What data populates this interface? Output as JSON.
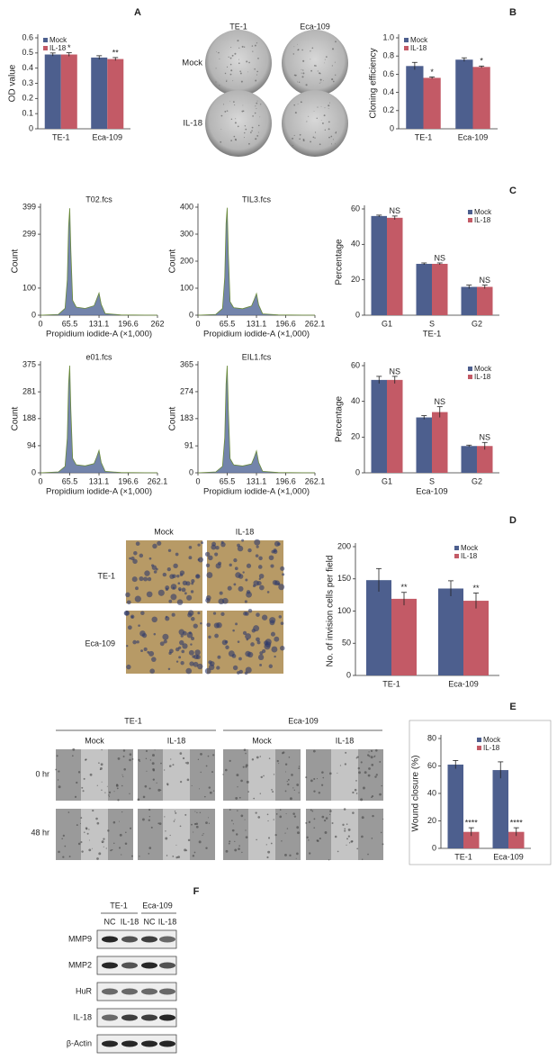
{
  "chart_data": [
    {
      "type": "bar",
      "label": "A",
      "ylabel": "OD value",
      "categories": [
        "TE-1",
        "Eca-109"
      ],
      "series": [
        {
          "name": "Mock",
          "color": "#4d5f8e",
          "values": [
            0.49,
            0.47
          ],
          "errors": [
            0.01,
            0.012
          ]
        },
        {
          "name": "IL-18",
          "color": "#c35a66",
          "values": [
            0.49,
            0.46
          ],
          "errors": [
            0.012,
            0.01
          ],
          "significance": [
            "*",
            "**"
          ]
        }
      ],
      "ylim": [
        0,
        0.6
      ],
      "yticks": [
        0,
        0.1,
        0.2,
        0.3,
        0.4,
        0.5,
        0.6
      ]
    },
    {
      "type": "bar",
      "label": "B",
      "ylabel": "Cloning efficiency",
      "categories": [
        "TE-1",
        "Eca-109"
      ],
      "series": [
        {
          "name": "Mock",
          "color": "#4d5f8e",
          "values": [
            0.69,
            0.76
          ],
          "errors": [
            0.04,
            0.02
          ]
        },
        {
          "name": "IL-18",
          "color": "#c35a66",
          "values": [
            0.56,
            0.68
          ],
          "errors": [
            0.01,
            0.01
          ],
          "significance": [
            "*",
            "*"
          ]
        }
      ],
      "ylim": [
        0,
        1
      ],
      "yticks": [
        0,
        0.2,
        0.4,
        0.6,
        0.8,
        {
          "value": 1,
          "label": "1.0"
        }
      ]
    },
    {
      "type": "area",
      "title": "T02.fcs",
      "xlabel": "Propidium iodide-A (×1,000)",
      "ylabel": "Count",
      "color": "#5b6f9c",
      "x": [
        0,
        40,
        55,
        60,
        63,
        65.5,
        68,
        72,
        80,
        100,
        120,
        126,
        131.1,
        136,
        145,
        180,
        262
      ],
      "values": [
        0,
        3,
        25,
        130,
        330,
        395,
        240,
        55,
        30,
        25,
        35,
        60,
        82,
        40,
        6,
        1,
        0
      ],
      "xlim": [
        0,
        262
      ],
      "xticks": [
        0,
        65.5,
        131.1,
        196.6,
        262
      ],
      "ylim": [
        0,
        399
      ],
      "yticks": [
        0,
        100,
        299,
        399
      ]
    },
    {
      "type": "area",
      "title": "TIL3.fcs",
      "xlabel": "Propidium iodide-A (×1,000)",
      "ylabel": "Count",
      "color": "#5b6f9c",
      "x": [
        0,
        40,
        55,
        60,
        63,
        65.5,
        68,
        72,
        80,
        100,
        120,
        126,
        131.1,
        136,
        145,
        180,
        262.1
      ],
      "values": [
        0,
        3,
        25,
        140,
        340,
        398,
        230,
        50,
        28,
        24,
        34,
        58,
        80,
        38,
        5,
        1,
        0
      ],
      "xlim": [
        0,
        262.1
      ],
      "xticks": [
        0,
        65.5,
        131.1,
        196.6,
        262.1
      ],
      "ylim": [
        0,
        400
      ],
      "yticks": [
        0,
        100,
        200,
        300,
        400
      ]
    },
    {
      "type": "area",
      "title": "e01.fcs",
      "xlabel": "Propidium iodide-A (×1,000)",
      "ylabel": "Count",
      "color": "#5b6f9c",
      "x": [
        0,
        40,
        55,
        60,
        63,
        65.5,
        68,
        72,
        80,
        100,
        120,
        126,
        131.1,
        136,
        145,
        180,
        262.1
      ],
      "values": [
        0,
        3,
        22,
        120,
        310,
        372,
        220,
        50,
        28,
        24,
        32,
        55,
        78,
        36,
        5,
        1,
        0
      ],
      "xlim": [
        0,
        262.1
      ],
      "xticks": [
        0,
        65.5,
        131.1,
        196.6,
        262.1
      ],
      "ylim": [
        0,
        375
      ],
      "yticks": [
        0,
        94,
        188,
        281,
        375
      ]
    },
    {
      "type": "area",
      "title": "EIL1.fcs",
      "xlabel": "Propidium iodide-A (×1,000)",
      "ylabel": "Count",
      "color": "#5b6f9c",
      "x": [
        0,
        40,
        55,
        60,
        63,
        65.5,
        68,
        72,
        80,
        100,
        120,
        126,
        131.1,
        136,
        145,
        180,
        262.1
      ],
      "values": [
        0,
        3,
        22,
        118,
        300,
        362,
        215,
        48,
        27,
        23,
        30,
        52,
        74,
        35,
        5,
        1,
        0
      ],
      "xlim": [
        0,
        262.1
      ],
      "xticks": [
        0,
        65.5,
        131.1,
        196.6,
        262.1
      ],
      "ylim": [
        0,
        365
      ],
      "yticks": [
        0,
        91,
        183,
        274,
        365
      ]
    },
    {
      "type": "bar",
      "label": "C",
      "ylabel": "Percentage",
      "xlabel": "TE-1",
      "categories": [
        "G1",
        "S",
        "G2"
      ],
      "series": [
        {
          "name": "Mock",
          "color": "#4d5f8e",
          "values": [
            56,
            29,
            16
          ],
          "errors": [
            0.5,
            0.5,
            1
          ]
        },
        {
          "name": "IL-18",
          "color": "#c35a66",
          "values": [
            55,
            29,
            16
          ],
          "errors": [
            1,
            0.5,
            1
          ],
          "significance": [
            "NS",
            "NS",
            "NS"
          ]
        }
      ],
      "ylim": [
        0,
        60
      ],
      "yticks": [
        0,
        20,
        40,
        60
      ]
    },
    {
      "type": "bar",
      "ylabel": "Percentage",
      "xlabel": "Eca-109",
      "categories": [
        "G1",
        "S",
        "G2"
      ],
      "series": [
        {
          "name": "Mock",
          "color": "#4d5f8e",
          "values": [
            52,
            31,
            15
          ],
          "errors": [
            2,
            1,
            0.5
          ]
        },
        {
          "name": "IL-18",
          "color": "#c35a66",
          "values": [
            52,
            34,
            15
          ],
          "errors": [
            2,
            3,
            2
          ],
          "significance": [
            "NS",
            "NS",
            "NS"
          ]
        }
      ],
      "ylim": [
        0,
        60
      ],
      "yticks": [
        0,
        20,
        40,
        60
      ]
    },
    {
      "type": "bar",
      "label": "D",
      "ylabel": "No. of invision cells per field",
      "categories": [
        "TE-1",
        "Eca-109"
      ],
      "series": [
        {
          "name": "Mock",
          "color": "#4d5f8e",
          "values": [
            148,
            135
          ],
          "errors": [
            18,
            12
          ]
        },
        {
          "name": "IL-18",
          "color": "#c35a66",
          "values": [
            119,
            116
          ],
          "errors": [
            10,
            12
          ],
          "significance": [
            "**",
            "**"
          ]
        }
      ],
      "ylim": [
        0,
        200
      ],
      "yticks": [
        0,
        50,
        100,
        150,
        200
      ]
    },
    {
      "type": "bar",
      "label": "E",
      "ylabel": "Wound closure (%)",
      "categories": [
        "TE-1",
        "Eca-109"
      ],
      "series": [
        {
          "name": "Mock",
          "color": "#4d5f8e",
          "values": [
            61,
            57
          ],
          "errors": [
            3,
            6
          ]
        },
        {
          "name": "IL-18",
          "color": "#c35a66",
          "values": [
            12,
            12
          ],
          "errors": [
            3,
            3
          ],
          "significance": [
            "****",
            "****"
          ]
        }
      ],
      "ylim": [
        0,
        80
      ],
      "yticks": [
        0,
        20,
        40,
        60,
        80
      ]
    }
  ],
  "figure": {
    "plates": {
      "columns": [
        "TE-1",
        "Eca-109"
      ],
      "rows": [
        "Mock",
        "IL-18"
      ]
    },
    "invasion": {
      "columns": [
        "Mock",
        "IL-18"
      ],
      "rows": [
        "TE-1",
        "Eca-109"
      ]
    },
    "wound": {
      "cell_lines": [
        "TE-1",
        "Eca-109"
      ],
      "treatments": [
        "Mock",
        "IL-18",
        "Mock",
        "IL-18"
      ],
      "times": [
        "0 hr",
        "48 hr"
      ]
    },
    "blot": {
      "label": "F",
      "cell_lines": [
        "TE-1",
        "Eca-109"
      ],
      "lanes": [
        "NC",
        "IL-18",
        "NC",
        "IL-18"
      ],
      "proteins": [
        "MMP9",
        "MMP2",
        "HuR",
        "IL-18",
        "β-Actin"
      ]
    }
  }
}
